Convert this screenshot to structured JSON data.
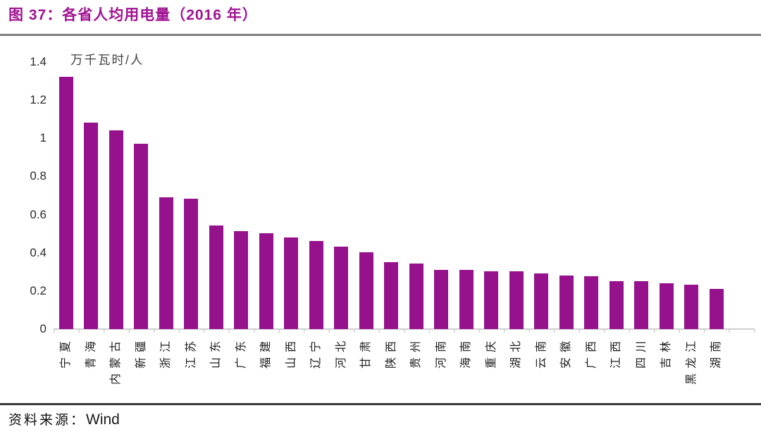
{
  "title": "图 37：各省人均用电量（2016 年）",
  "source": {
    "prefix": "资料来源：",
    "provider": "Wind"
  },
  "colors": {
    "title_purple": "#A01392",
    "bar_purple": "#96128C",
    "axis_gray": "#CFCFCF",
    "title_rule_gray": "#7F7F7F",
    "footer_rule_dark": "#3A3A3A"
  },
  "chart_data": {
    "type": "bar",
    "title": "各省人均用电量（2016 年）",
    "unit": "万千瓦时/人",
    "xlabel": "",
    "ylabel": "万千瓦时/人",
    "ylim": [
      0,
      1.4
    ],
    "y_ticks": [
      "1.4",
      "1.2",
      "1",
      "0.8",
      "0.6",
      "0.4",
      "0.2",
      "0"
    ],
    "grid": false,
    "legend": false,
    "categories": [
      "宁夏",
      "青海",
      "内蒙古",
      "新疆",
      "浙江",
      "江苏",
      "山东",
      "广东",
      "福建",
      "山西",
      "辽宁",
      "河北",
      "甘肃",
      "陕西",
      "贵州",
      "河南",
      "海南",
      "重庆",
      "湖北",
      "云南",
      "安徽",
      "广西",
      "江西",
      "四川",
      "吉林",
      "黑龙江",
      "湖南"
    ],
    "values": [
      1.32,
      1.08,
      1.04,
      0.97,
      0.69,
      0.68,
      0.54,
      0.51,
      0.5,
      0.48,
      0.46,
      0.43,
      0.4,
      0.35,
      0.34,
      0.31,
      0.31,
      0.3,
      0.3,
      0.29,
      0.28,
      0.275,
      0.25,
      0.25,
      0.24,
      0.23,
      0.21
    ]
  }
}
